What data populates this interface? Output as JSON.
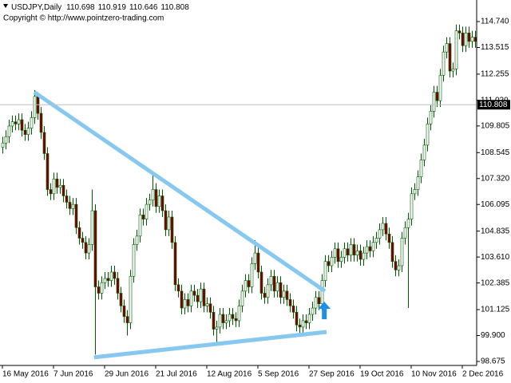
{
  "chart_data": {
    "type": "candlestick",
    "title": "USDJPY,Daily",
    "header_ohlc": [
      110.698,
      110.919,
      110.646,
      110.808
    ],
    "subtitle": "Copyright © http://www.pointzero-trading.com",
    "categories": [
      "16 May 2016",
      null,
      null,
      null,
      null,
      null,
      null,
      null,
      null,
      null,
      null,
      null,
      null,
      null,
      null,
      null,
      "7 Jun 2016",
      null,
      null,
      null,
      null,
      null,
      null,
      null,
      null,
      null,
      null,
      null,
      null,
      null,
      null,
      null,
      "29 Jun 2016",
      null,
      null,
      null,
      null,
      null,
      null,
      null,
      null,
      null,
      null,
      null,
      null,
      null,
      null,
      null,
      "21 Jul 2016",
      null,
      null,
      null,
      null,
      null,
      null,
      null,
      null,
      null,
      null,
      null,
      null,
      null,
      null,
      null,
      "12 Aug 2016",
      null,
      null,
      null,
      null,
      null,
      null,
      null,
      null,
      null,
      null,
      null,
      null,
      null,
      null,
      null,
      "5 Sep 2016",
      null,
      null,
      null,
      null,
      null,
      null,
      null,
      null,
      null,
      null,
      null,
      null,
      null,
      null,
      null,
      "27 Sep 2016",
      null,
      null,
      null,
      null,
      null,
      null,
      null,
      null,
      null,
      null,
      null,
      null,
      null,
      null,
      null,
      "19 Oct 2016",
      null,
      null,
      null,
      null,
      null,
      null,
      null,
      null,
      null,
      null,
      null,
      null,
      null,
      null,
      null,
      "10 Nov 2016",
      null,
      null,
      null,
      null,
      null,
      null,
      null,
      null,
      null,
      null,
      null,
      null,
      null,
      null,
      null,
      "2 Dec 2016",
      null,
      null,
      null,
      null
    ],
    "open": [
      108.8,
      109.0,
      109.3,
      109.8,
      110.0,
      109.9,
      110.1,
      109.6,
      109.4,
      109.7,
      110.2,
      111.2,
      110.4,
      109.5,
      108.5,
      106.8,
      106.6,
      107.3,
      106.9,
      107.0,
      106.5,
      106.2,
      105.9,
      106.1,
      105.0,
      104.5,
      104.3,
      103.8,
      104.2,
      105.8,
      102.2,
      101.9,
      102.4,
      102.6,
      102.5,
      102.9,
      102.6,
      101.9,
      101.3,
      100.8,
      100.5,
      102.7,
      104.2,
      104.6,
      105.6,
      105.4,
      106.1,
      106.3,
      106.8,
      106.0,
      106.5,
      105.8,
      104.9,
      105.5,
      104.3,
      102.3,
      102.0,
      101.2,
      101.6,
      101.3,
      102.0,
      101.8,
      101.5,
      102.1,
      101.3,
      101.4,
      101.0,
      100.2,
      100.3,
      100.9,
      100.5,
      100.6,
      100.9,
      100.7,
      100.6,
      101.3,
      102.0,
      102.5,
      102.2,
      103.3,
      103.8,
      102.9,
      101.9,
      101.7,
      102.3,
      102.7,
      102.0,
      102.4,
      101.7,
      102.0,
      101.6,
      101.3,
      101.0,
      100.4,
      100.3,
      100.6,
      100.5,
      100.9,
      101.2,
      101.7,
      101.4,
      102.5,
      103.4,
      103.2,
      103.6,
      104.0,
      103.4,
      103.6,
      104.0,
      103.7,
      104.2,
      103.7,
      103.9,
      103.5,
      103.8,
      104.1,
      103.9,
      104.3,
      104.5,
      104.9,
      105.2,
      104.7,
      104.3,
      103.4,
      103.0,
      103.2,
      104.5,
      105.0,
      105.4,
      106.6,
      106.8,
      107.4,
      108.2,
      108.9,
      109.9,
      110.5,
      111.4,
      111.0,
      112.2,
      113.3,
      113.7,
      112.4,
      112.5,
      114.3,
      114.2,
      113.6,
      114.2,
      113.8,
      114.0
    ],
    "high": [
      109.3,
      109.6,
      110.1,
      110.3,
      110.3,
      110.4,
      110.4,
      109.9,
      110.0,
      110.5,
      111.5,
      111.4,
      110.7,
      109.8,
      108.8,
      107.1,
      107.6,
      107.6,
      107.3,
      107.3,
      106.8,
      106.5,
      106.4,
      106.4,
      105.3,
      104.8,
      104.6,
      104.5,
      106.8,
      106.1,
      102.5,
      102.7,
      102.9,
      102.9,
      103.2,
      103.2,
      102.9,
      102.2,
      101.6,
      101.1,
      103.0,
      104.5,
      104.9,
      105.9,
      105.9,
      106.4,
      106.6,
      107.6,
      107.1,
      106.8,
      106.8,
      106.1,
      105.8,
      105.8,
      104.6,
      102.6,
      102.3,
      101.9,
      101.9,
      102.3,
      102.3,
      102.1,
      102.4,
      102.4,
      101.7,
      101.7,
      101.3,
      100.6,
      101.2,
      101.2,
      100.9,
      101.2,
      101.2,
      101.0,
      101.6,
      102.3,
      102.8,
      102.8,
      103.6,
      104.4,
      104.1,
      103.2,
      102.2,
      102.6,
      103.0,
      103.0,
      102.7,
      102.7,
      102.3,
      102.3,
      101.9,
      101.6,
      101.3,
      100.7,
      100.9,
      100.9,
      101.2,
      101.5,
      102.0,
      102.0,
      102.8,
      103.7,
      103.7,
      103.9,
      104.3,
      104.3,
      103.9,
      104.3,
      104.3,
      104.5,
      104.5,
      104.2,
      104.2,
      104.1,
      104.4,
      104.4,
      104.6,
      104.8,
      105.2,
      105.5,
      105.5,
      105.0,
      104.6,
      103.7,
      103.5,
      104.8,
      105.3,
      105.7,
      106.9,
      107.1,
      107.7,
      108.5,
      109.2,
      110.2,
      110.8,
      111.7,
      111.7,
      112.5,
      113.6,
      114.0,
      114.0,
      112.8,
      114.6,
      114.6,
      114.5,
      114.5,
      114.5,
      114.3,
      114.3
    ],
    "low": [
      108.5,
      108.7,
      109.0,
      109.5,
      109.6,
      109.6,
      109.3,
      109.1,
      109.1,
      109.4,
      109.9,
      110.1,
      109.2,
      108.2,
      106.5,
      106.3,
      106.3,
      106.6,
      106.6,
      106.2,
      105.9,
      105.6,
      105.6,
      104.7,
      104.2,
      104.0,
      103.5,
      103.5,
      103.9,
      99.0,
      101.6,
      101.6,
      102.1,
      102.2,
      102.2,
      102.3,
      101.6,
      101.0,
      100.5,
      99.9,
      100.2,
      102.4,
      103.9,
      104.3,
      105.1,
      105.1,
      105.8,
      106.0,
      105.7,
      105.7,
      105.5,
      104.6,
      104.6,
      104.0,
      102.0,
      101.7,
      100.9,
      100.9,
      101.0,
      101.0,
      101.5,
      101.2,
      101.2,
      101.0,
      101.0,
      100.7,
      99.9,
      99.6,
      100.0,
      100.2,
      100.2,
      100.3,
      100.4,
      100.3,
      100.3,
      101.0,
      101.7,
      101.9,
      101.9,
      103.0,
      102.6,
      101.6,
      101.4,
      101.4,
      102.0,
      101.7,
      101.7,
      101.4,
      101.4,
      101.3,
      101.0,
      100.7,
      100.1,
      100.0,
      100.0,
      100.2,
      100.2,
      100.6,
      100.9,
      101.1,
      101.1,
      102.2,
      102.9,
      102.9,
      103.3,
      103.1,
      103.1,
      103.3,
      103.4,
      103.4,
      103.4,
      103.4,
      103.2,
      103.2,
      103.5,
      103.6,
      103.6,
      104.0,
      104.2,
      104.6,
      104.4,
      104.0,
      103.1,
      102.7,
      102.7,
      102.9,
      104.2,
      101.2,
      105.1,
      106.3,
      106.5,
      107.1,
      107.9,
      108.6,
      109.6,
      110.2,
      110.7,
      110.7,
      111.9,
      113.0,
      112.1,
      112.1,
      112.2,
      113.9,
      113.3,
      113.3,
      113.5,
      113.5,
      113.5
    ],
    "close": [
      109.0,
      109.3,
      109.8,
      110.0,
      109.9,
      110.1,
      109.6,
      109.4,
      109.7,
      110.2,
      111.2,
      110.4,
      109.5,
      108.5,
      106.8,
      106.6,
      107.3,
      106.9,
      107.0,
      106.5,
      106.2,
      105.9,
      106.1,
      105.0,
      104.5,
      104.3,
      103.8,
      104.2,
      105.8,
      102.2,
      101.9,
      102.4,
      102.6,
      102.5,
      102.9,
      102.6,
      101.9,
      101.3,
      100.8,
      100.5,
      102.7,
      104.2,
      104.6,
      105.6,
      105.4,
      106.1,
      106.3,
      106.8,
      106.0,
      106.5,
      105.8,
      104.9,
      105.5,
      104.3,
      102.3,
      102.0,
      101.2,
      101.6,
      101.3,
      102.0,
      101.8,
      101.5,
      102.1,
      101.3,
      101.4,
      101.0,
      100.2,
      100.3,
      100.9,
      100.5,
      100.6,
      100.9,
      100.7,
      100.6,
      101.3,
      102.0,
      102.5,
      102.2,
      103.3,
      103.8,
      102.9,
      101.9,
      101.7,
      102.3,
      102.7,
      102.0,
      102.4,
      101.7,
      102.0,
      101.6,
      101.3,
      101.0,
      100.4,
      100.3,
      100.6,
      100.5,
      100.9,
      101.2,
      101.7,
      101.4,
      102.5,
      103.4,
      103.2,
      103.6,
      104.0,
      103.4,
      103.6,
      104.0,
      103.7,
      104.2,
      103.7,
      103.9,
      103.5,
      103.8,
      104.1,
      103.9,
      104.3,
      104.5,
      104.9,
      105.2,
      104.7,
      104.3,
      103.4,
      103.0,
      103.2,
      104.5,
      105.0,
      105.4,
      106.6,
      106.8,
      107.4,
      108.2,
      108.9,
      109.9,
      110.5,
      111.4,
      111.0,
      112.2,
      113.3,
      113.7,
      112.4,
      112.5,
      114.3,
      114.2,
      113.6,
      114.2,
      113.8,
      114.0,
      113.8
    ],
    "ylim": [
      98.486,
      115.758
    ],
    "yticks": [
      {
        "value": 114.74,
        "label": "114.740"
      },
      {
        "value": 113.515,
        "label": "113.515"
      },
      {
        "value": 112.255,
        "label": "112.255"
      },
      {
        "value": 111.02,
        "label": "111.020"
      },
      {
        "value": 109.805,
        "label": "109.805"
      },
      {
        "value": 108.545,
        "label": "108.545"
      },
      {
        "value": 107.32,
        "label": "107.320"
      },
      {
        "value": 106.095,
        "label": "106.095"
      },
      {
        "value": 104.835,
        "label": "104.835"
      },
      {
        "value": 103.61,
        "label": "103.610"
      },
      {
        "value": 102.385,
        "label": "102.385"
      },
      {
        "value": 101.125,
        "label": "101.125"
      },
      {
        "value": 99.9,
        "label": "99.900"
      },
      {
        "value": 98.675,
        "label": "98.675"
      }
    ],
    "grid": false,
    "wick_color": "#005a00",
    "bull_color": "#ffffff",
    "bear_color": "#7a0000",
    "trendline_color": "#87c8f0",
    "trendlines": [
      {
        "x": [
          10,
          101
        ],
        "y": [
          111.4,
          102.0
        ]
      },
      {
        "x": [
          28.7,
          101.5
        ],
        "y": [
          98.87,
          100.07
        ]
      }
    ],
    "arrow_color": "#1e8fe6",
    "arrow": {
      "x": 100.8,
      "y": 101.5
    }
  }
}
